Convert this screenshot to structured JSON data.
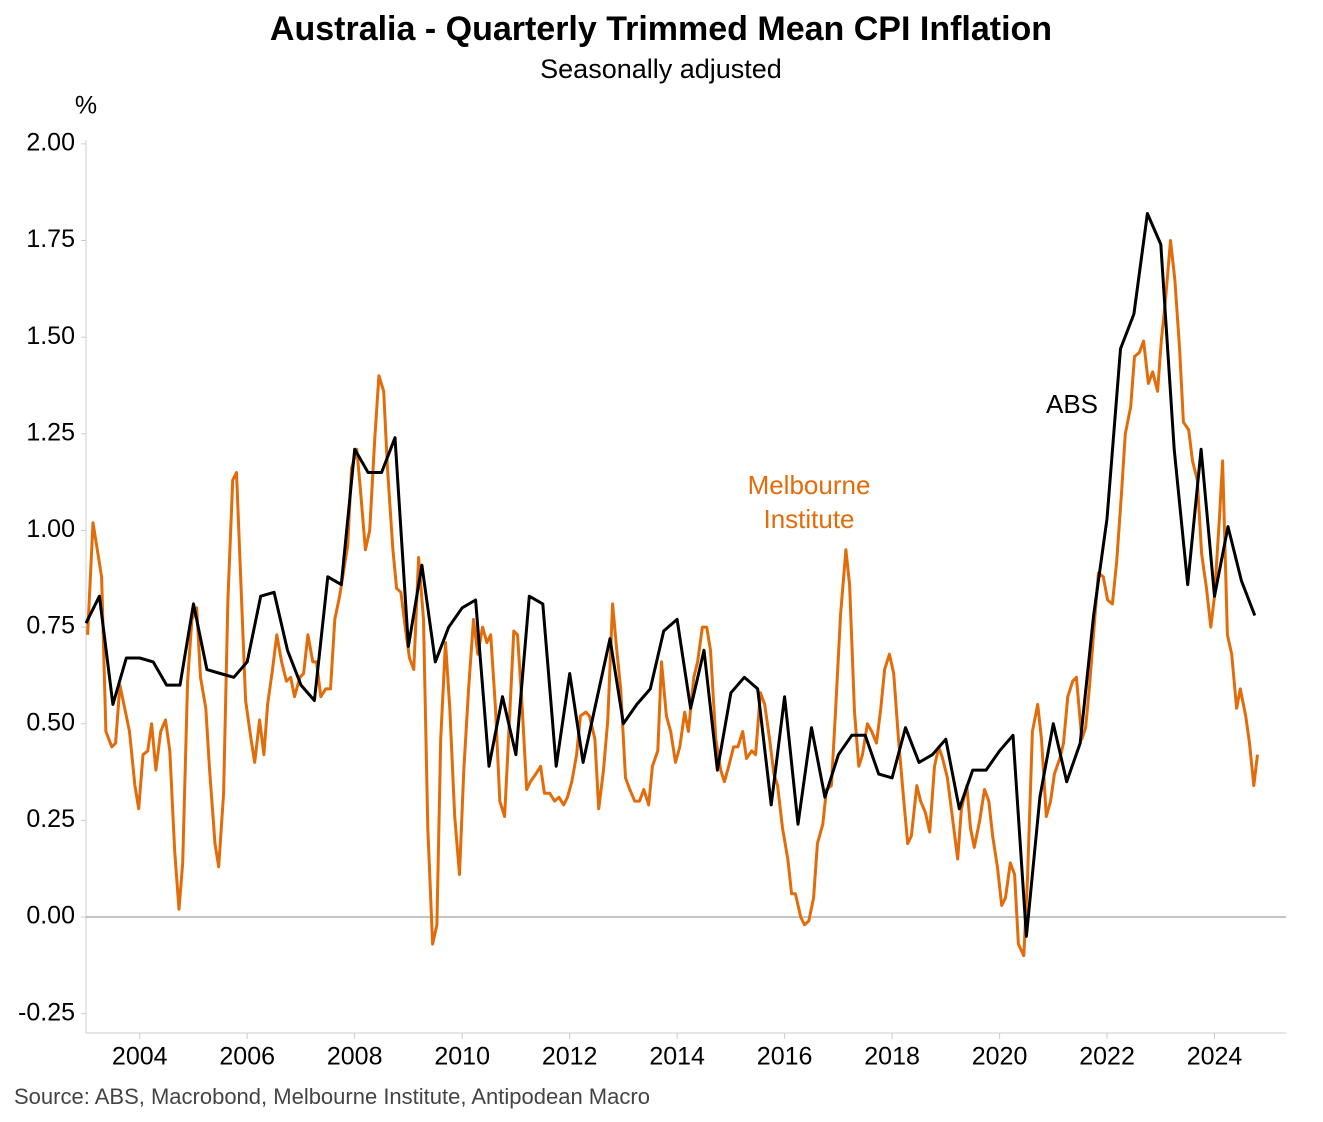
{
  "chart_data": {
    "type": "line",
    "title": "Australia - Quarterly Trimmed Mean CPI Inflation",
    "subtitle": "Seasonally adjusted",
    "y_label": "%",
    "source": "Source: ABS, Macrobond, Melbourne Institute, Antipodean Macro",
    "xlim": [
      2003.0,
      2025.33
    ],
    "xticks": [
      2004,
      2006,
      2008,
      2010,
      2012,
      2014,
      2016,
      2018,
      2020,
      2022,
      2024
    ],
    "ylim": [
      -0.3,
      2.01
    ],
    "yticks": [
      {
        "value": 2,
        "label": "2.00"
      },
      {
        "value": 1.75,
        "label": "1.75"
      },
      {
        "value": 1.5,
        "label": "1.50"
      },
      {
        "value": 1.25,
        "label": "1.25"
      },
      {
        "value": 1,
        "label": "1.00"
      },
      {
        "value": 0.75,
        "label": "0.75"
      },
      {
        "value": 0.5,
        "label": "0.50"
      },
      {
        "value": 0.25,
        "label": "0.25"
      },
      {
        "value": 0,
        "label": "0.00"
      },
      {
        "value": -0.25,
        "label": "-0.25"
      }
    ],
    "grid": false,
    "series": [
      {
        "name": "ABS",
        "color": "#000000",
        "x": [
          2003.0,
          2003.25,
          2003.5,
          2003.75,
          2004.0,
          2004.25,
          2004.5,
          2004.75,
          2005.0,
          2005.25,
          2005.5,
          2005.75,
          2006.0,
          2006.25,
          2006.5,
          2006.75,
          2007.0,
          2007.25,
          2007.5,
          2007.75,
          2008.0,
          2008.25,
          2008.5,
          2008.75,
          2009.0,
          2009.25,
          2009.5,
          2009.75,
          2010.0,
          2010.25,
          2010.5,
          2010.75,
          2011.0,
          2011.25,
          2011.5,
          2011.75,
          2012.0,
          2012.25,
          2012.5,
          2012.75,
          2013.0,
          2013.25,
          2013.5,
          2013.75,
          2014.0,
          2014.25,
          2014.5,
          2014.75,
          2015.0,
          2015.25,
          2015.5,
          2015.75,
          2016.0,
          2016.25,
          2016.5,
          2016.75,
          2017.0,
          2017.25,
          2017.5,
          2017.75,
          2018.0,
          2018.25,
          2018.5,
          2018.75,
          2019.0,
          2019.25,
          2019.5,
          2019.75,
          2020.0,
          2020.25,
          2020.5,
          2020.75,
          2021.0,
          2021.25,
          2021.5,
          2021.75,
          2022.0,
          2022.25,
          2022.5,
          2022.75,
          2023.0,
          2023.25,
          2023.5,
          2023.75,
          2024.0,
          2024.25,
          2024.5,
          2024.75
        ],
        "values": [
          0.76,
          0.83,
          0.55,
          0.67,
          0.67,
          0.66,
          0.6,
          0.6,
          0.81,
          0.64,
          0.63,
          0.62,
          0.66,
          0.83,
          0.84,
          0.69,
          0.6,
          0.56,
          0.88,
          0.86,
          1.21,
          1.15,
          1.15,
          1.24,
          0.7,
          0.91,
          0.66,
          0.75,
          0.8,
          0.82,
          0.39,
          0.57,
          0.42,
          0.83,
          0.81,
          0.39,
          0.63,
          0.4,
          0.56,
          0.72,
          0.5,
          0.55,
          0.59,
          0.74,
          0.77,
          0.54,
          0.69,
          0.38,
          0.58,
          0.62,
          0.59,
          0.29,
          0.57,
          0.24,
          0.49,
          0.31,
          0.42,
          0.47,
          0.47,
          0.37,
          0.36,
          0.49,
          0.4,
          0.42,
          0.46,
          0.28,
          0.38,
          0.38,
          0.43,
          0.47,
          -0.05,
          0.31,
          0.5,
          0.35,
          0.45,
          0.78,
          1.03,
          1.47,
          1.56,
          1.82,
          1.74,
          1.21,
          0.86,
          1.21,
          0.83,
          1.01,
          0.87,
          0.78
        ]
      },
      {
        "name": "Melbourne Institute",
        "color": "#e36c0a",
        "x": [
          2003.03,
          2003.13,
          2003.29,
          2003.37,
          2003.48,
          2003.55,
          2003.63,
          2003.81,
          2003.91,
          2003.98,
          2004.06,
          2004.15,
          2004.22,
          2004.3,
          2004.39,
          2004.48,
          2004.56,
          2004.65,
          2004.73,
          2004.8,
          2004.89,
          2004.97,
          2005.06,
          2005.13,
          2005.23,
          2005.3,
          2005.4,
          2005.47,
          2005.56,
          2005.64,
          2005.73,
          2005.8,
          2005.88,
          2005.97,
          2006.07,
          2006.14,
          2006.23,
          2006.31,
          2006.38,
          2006.47,
          2006.55,
          2006.64,
          2006.73,
          2006.81,
          2006.88,
          2006.98,
          2007.05,
          2007.13,
          2007.22,
          2007.29,
          2007.37,
          2007.46,
          2007.55,
          2007.63,
          2007.72,
          2007.8,
          2007.87,
          2007.94,
          2008.04,
          2008.11,
          2008.2,
          2008.28,
          2008.37,
          2008.45,
          2008.54,
          2008.61,
          2008.71,
          2008.78,
          2008.86,
          2008.95,
          2009.02,
          2009.1,
          2009.19,
          2009.28,
          2009.36,
          2009.45,
          2009.53,
          2009.6,
          2009.69,
          2009.77,
          2009.86,
          2009.95,
          2010.03,
          2010.12,
          2010.21,
          2010.29,
          2010.38,
          2010.46,
          2010.53,
          2010.62,
          2010.7,
          2010.79,
          2010.87,
          2010.96,
          2011.03,
          2011.11,
          2011.2,
          2011.27,
          2011.37,
          2011.46,
          2011.53,
          2011.63,
          2011.72,
          2011.8,
          2011.89,
          2011.96,
          2012.04,
          2012.13,
          2012.2,
          2012.3,
          2012.37,
          2012.47,
          2012.54,
          2012.63,
          2012.71,
          2012.8,
          2012.87,
          2012.95,
          2013.04,
          2013.12,
          2013.21,
          2013.3,
          2013.38,
          2013.47,
          2013.54,
          2013.64,
          2013.71,
          2013.8,
          2013.88,
          2013.97,
          2014.05,
          2014.14,
          2014.21,
          2014.31,
          2014.38,
          2014.47,
          2014.55,
          2014.62,
          2014.72,
          2014.81,
          2014.88,
          2014.96,
          2015.05,
          2015.13,
          2015.22,
          2015.29,
          2015.39,
          2015.46,
          2015.55,
          2015.63,
          2015.72,
          2015.8,
          2015.87,
          2015.96,
          2016.06,
          2016.13,
          2016.2,
          2016.3,
          2016.37,
          2016.45,
          2016.54,
          2016.61,
          2016.71,
          2016.78,
          2016.87,
          2016.95,
          2017.04,
          2017.14,
          2017.21,
          2017.3,
          2017.38,
          2017.45,
          2017.54,
          2017.62,
          2017.71,
          2017.79,
          2017.86,
          2017.95,
          2018.03,
          2018.12,
          2018.2,
          2018.29,
          2018.36,
          2018.46,
          2018.53,
          2018.62,
          2018.7,
          2018.79,
          2018.87,
          2018.94,
          2019.03,
          2019.13,
          2019.22,
          2019.29,
          2019.39,
          2019.46,
          2019.53,
          2019.63,
          2019.72,
          2019.8,
          2019.87,
          2019.96,
          2020.04,
          2020.11,
          2020.2,
          2020.28,
          2020.35,
          2020.45,
          2020.52,
          2020.61,
          2020.71,
          2020.78,
          2020.87,
          2020.95,
          2021.02,
          2021.12,
          2021.19,
          2021.27,
          2021.36,
          2021.43,
          2021.53,
          2021.6,
          2021.67,
          2021.77,
          2021.84,
          2021.93,
          2022.01,
          2022.1,
          2022.18,
          2022.27,
          2022.34,
          2022.44,
          2022.51,
          2022.6,
          2022.68,
          2022.77,
          2022.85,
          2022.94,
          2023.01,
          2023.09,
          2023.18,
          2023.26,
          2023.35,
          2023.42,
          2023.52,
          2023.59,
          2023.68,
          2023.76,
          2023.85,
          2023.93,
          2024.0,
          2024.09,
          2024.15,
          2024.24,
          2024.32,
          2024.41,
          2024.48,
          2024.58,
          2024.65,
          2024.73,
          2024.8
        ],
        "values": [
          0.73,
          1.02,
          0.88,
          0.48,
          0.44,
          0.45,
          0.6,
          0.48,
          0.34,
          0.28,
          0.42,
          0.43,
          0.5,
          0.38,
          0.48,
          0.51,
          0.43,
          0.17,
          0.02,
          0.14,
          0.61,
          0.77,
          0.8,
          0.62,
          0.54,
          0.38,
          0.19,
          0.13,
          0.32,
          0.82,
          1.13,
          1.15,
          0.87,
          0.56,
          0.46,
          0.4,
          0.51,
          0.42,
          0.55,
          0.64,
          0.73,
          0.66,
          0.61,
          0.62,
          0.57,
          0.62,
          0.63,
          0.73,
          0.66,
          0.66,
          0.57,
          0.59,
          0.59,
          0.77,
          0.83,
          0.9,
          0.96,
          1.16,
          1.21,
          1.1,
          0.95,
          1.0,
          1.23,
          1.4,
          1.36,
          1.16,
          0.95,
          0.85,
          0.84,
          0.74,
          0.67,
          0.64,
          0.93,
          0.77,
          0.23,
          -0.07,
          -0.02,
          0.46,
          0.71,
          0.54,
          0.26,
          0.11,
          0.38,
          0.59,
          0.77,
          0.68,
          0.75,
          0.71,
          0.73,
          0.54,
          0.3,
          0.26,
          0.48,
          0.74,
          0.73,
          0.56,
          0.33,
          0.35,
          0.37,
          0.39,
          0.32,
          0.32,
          0.3,
          0.31,
          0.29,
          0.31,
          0.35,
          0.42,
          0.52,
          0.53,
          0.52,
          0.46,
          0.28,
          0.38,
          0.51,
          0.81,
          0.7,
          0.59,
          0.36,
          0.33,
          0.3,
          0.3,
          0.33,
          0.29,
          0.39,
          0.43,
          0.66,
          0.52,
          0.48,
          0.4,
          0.44,
          0.53,
          0.48,
          0.62,
          0.66,
          0.75,
          0.75,
          0.69,
          0.46,
          0.38,
          0.35,
          0.39,
          0.44,
          0.44,
          0.48,
          0.41,
          0.43,
          0.42,
          0.58,
          0.55,
          0.46,
          0.37,
          0.34,
          0.23,
          0.15,
          0.06,
          0.06,
          0.0,
          -0.02,
          -0.01,
          0.05,
          0.19,
          0.24,
          0.33,
          0.34,
          0.54,
          0.78,
          0.95,
          0.86,
          0.53,
          0.39,
          0.42,
          0.5,
          0.48,
          0.45,
          0.54,
          0.64,
          0.68,
          0.63,
          0.46,
          0.33,
          0.19,
          0.21,
          0.34,
          0.3,
          0.27,
          0.22,
          0.39,
          0.44,
          0.41,
          0.36,
          0.25,
          0.15,
          0.28,
          0.34,
          0.23,
          0.18,
          0.25,
          0.33,
          0.3,
          0.21,
          0.13,
          0.03,
          0.05,
          0.14,
          0.11,
          -0.07,
          -0.1,
          0.1,
          0.48,
          0.55,
          0.46,
          0.26,
          0.3,
          0.37,
          0.41,
          0.45,
          0.57,
          0.61,
          0.62,
          0.46,
          0.49,
          0.59,
          0.77,
          0.89,
          0.88,
          0.82,
          0.81,
          0.92,
          1.1,
          1.25,
          1.32,
          1.45,
          1.46,
          1.49,
          1.38,
          1.41,
          1.36,
          1.49,
          1.6,
          1.75,
          1.65,
          1.47,
          1.28,
          1.26,
          1.18,
          1.13,
          0.94,
          0.85,
          0.75,
          0.83,
          1.03,
          1.18,
          0.73,
          0.68,
          0.54,
          0.59,
          0.52,
          0.45,
          0.34,
          0.42
        ]
      }
    ]
  }
}
